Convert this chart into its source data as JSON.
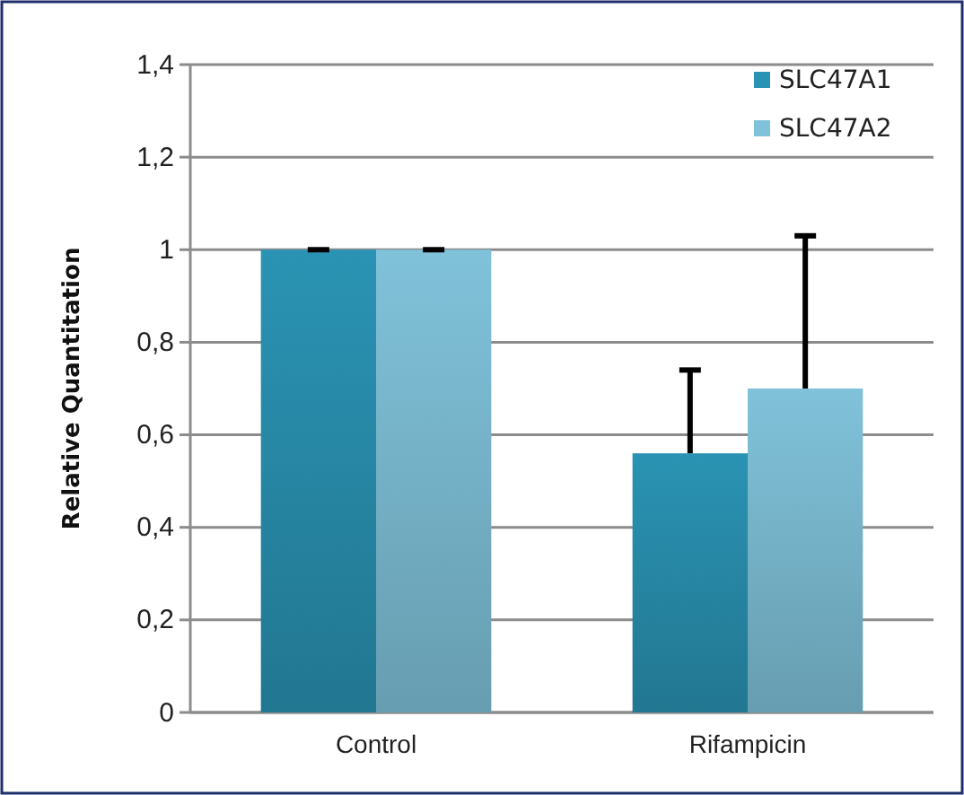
{
  "chart_data": {
    "type": "bar",
    "ylabel": "Relative  Quantitation",
    "categories": [
      "Control",
      "Rifampicin"
    ],
    "series": [
      {
        "name": "SLC47A1",
        "color": "#2a93b3",
        "values": [
          1,
          0.56
        ],
        "errors": [
          [
            1,
            1
          ],
          [
            0.56,
            0.74
          ]
        ]
      },
      {
        "name": "SLC47A2",
        "color": "#80c2da",
        "values": [
          1,
          0.7
        ],
        "errors": [
          [
            1,
            1
          ],
          [
            0.7,
            1.03
          ]
        ]
      }
    ],
    "ylim": [
      0,
      1.4
    ],
    "yticks": [
      {
        "value": 0,
        "label": "0"
      },
      {
        "value": 0.2,
        "label": "0,2"
      },
      {
        "value": 0.4,
        "label": "0,4"
      },
      {
        "value": 0.6,
        "label": "0,6"
      },
      {
        "value": 0.8,
        "label": "0,8"
      },
      {
        "value": 1,
        "label": "1"
      },
      {
        "value": 1.2,
        "label": "1,2"
      },
      {
        "value": 1.4,
        "label": "1,4"
      }
    ],
    "grid": "y",
    "legend": "top right"
  }
}
